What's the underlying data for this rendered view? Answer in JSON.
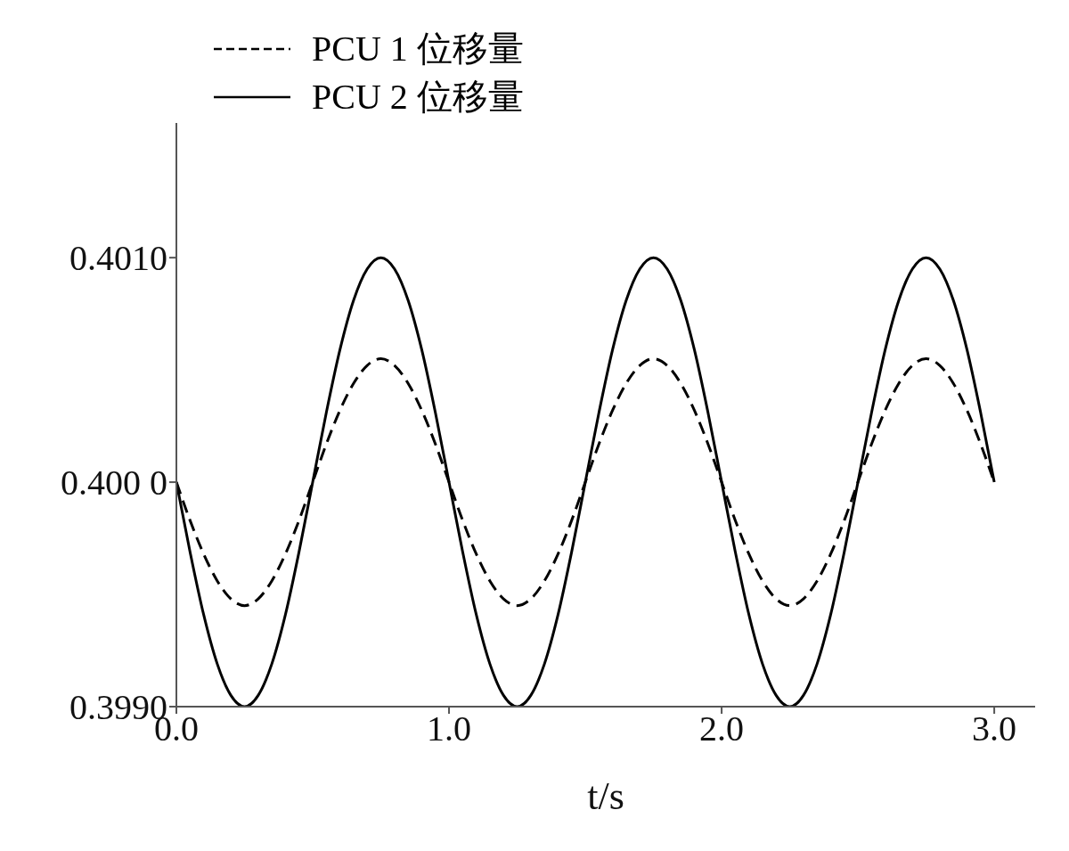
{
  "chart_data": {
    "type": "line",
    "xlabel": "t/s",
    "x": [
      0,
      0.05,
      0.1,
      0.15,
      0.2,
      0.25,
      0.3,
      0.35,
      0.4,
      0.45,
      0.5,
      0.55,
      0.6,
      0.65,
      0.7,
      0.75,
      0.8,
      0.85,
      0.9,
      0.95,
      1,
      1.05,
      1.1,
      1.15,
      1.2,
      1.25,
      1.3,
      1.35,
      1.4,
      1.45,
      1.5,
      1.55,
      1.6,
      1.65,
      1.7,
      1.75,
      1.8,
      1.85,
      1.9,
      1.95,
      2,
      2.05,
      2.1,
      2.15,
      2.2,
      2.25,
      2.3,
      2.35,
      2.4,
      2.45,
      2.5,
      2.55,
      2.6,
      2.65,
      2.7,
      2.75,
      2.8,
      2.85,
      2.9,
      2.95,
      3
    ],
    "series": [
      {
        "name": "PCU 1 位移量",
        "color": "#000000",
        "line_style": "dashed",
        "values": [
          0.4,
          0.39983,
          0.39968,
          0.39956,
          0.39948,
          0.39945,
          0.39948,
          0.39956,
          0.39968,
          0.39983,
          0.4,
          0.40017,
          0.40032,
          0.40044,
          0.40052,
          0.40055,
          0.40052,
          0.40044,
          0.40032,
          0.40017,
          0.4,
          0.39983,
          0.39968,
          0.39956,
          0.39948,
          0.39945,
          0.39948,
          0.39956,
          0.39968,
          0.39983,
          0.4,
          0.40017,
          0.40032,
          0.40044,
          0.40052,
          0.40055,
          0.40052,
          0.40044,
          0.40032,
          0.40017,
          0.4,
          0.39983,
          0.39968,
          0.39956,
          0.39948,
          0.39945,
          0.39948,
          0.39956,
          0.39968,
          0.39983,
          0.4,
          0.40017,
          0.40032,
          0.40044,
          0.40052,
          0.40055,
          0.40052,
          0.40044,
          0.40032,
          0.40017,
          0.4
        ]
      },
      {
        "name": "PCU 2 位移量",
        "color": "#000000",
        "line_style": "solid",
        "values": [
          0.4,
          0.39969,
          0.39941,
          0.39919,
          0.39905,
          0.399,
          0.39905,
          0.39919,
          0.39941,
          0.39969,
          0.4,
          0.40031,
          0.40059,
          0.40081,
          0.40095,
          0.401,
          0.40095,
          0.40081,
          0.40059,
          0.40031,
          0.4,
          0.39969,
          0.39941,
          0.39919,
          0.39905,
          0.399,
          0.39905,
          0.39919,
          0.39941,
          0.39969,
          0.4,
          0.40031,
          0.40059,
          0.40081,
          0.40095,
          0.401,
          0.40095,
          0.40081,
          0.40059,
          0.40031,
          0.4,
          0.39969,
          0.39941,
          0.39919,
          0.39905,
          0.399,
          0.39905,
          0.39919,
          0.39941,
          0.39969,
          0.4,
          0.40031,
          0.40059,
          0.40081,
          0.40095,
          0.401,
          0.40095,
          0.40081,
          0.40059,
          0.40031,
          0.4
        ]
      }
    ],
    "xlim": [
      0,
      3.15
    ],
    "xticks": [
      {
        "value": 0,
        "label": "0.0"
      },
      {
        "value": 1,
        "label": "1.0"
      },
      {
        "value": 2,
        "label": "2.0"
      },
      {
        "value": 3,
        "label": "3.0"
      }
    ],
    "ylim": [
      0.399,
      0.4016
    ],
    "yticks": [
      {
        "value": 0.399,
        "label": "0.3990"
      },
      {
        "value": 0.4,
        "label": "0.400 0"
      },
      {
        "value": 0.401,
        "label": "0.4010"
      }
    ],
    "grid": false,
    "legend": "top left",
    "marker": "none"
  }
}
